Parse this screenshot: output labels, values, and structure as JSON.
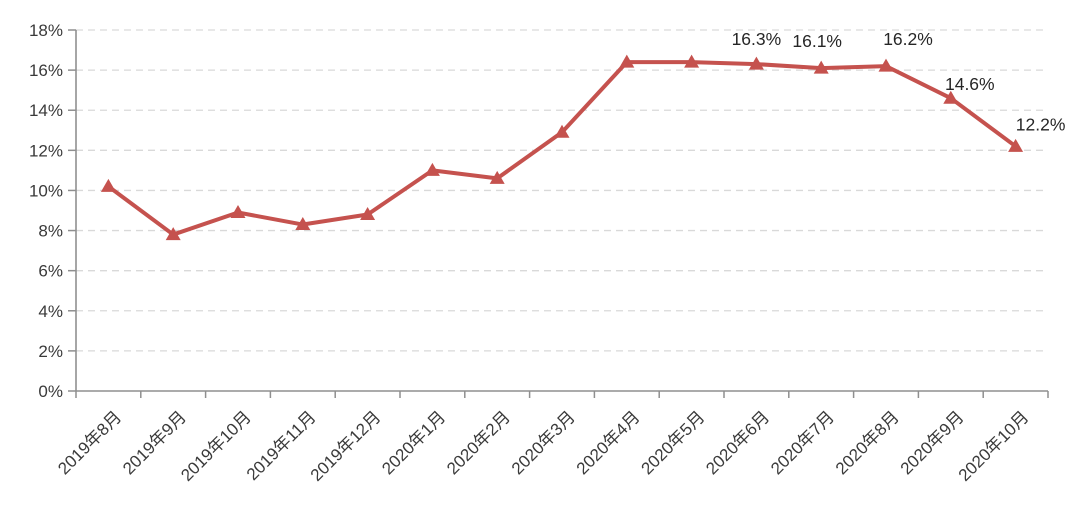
{
  "chart_data": {
    "type": "line",
    "title": "",
    "categories": [
      "2019年8月",
      "2019年9月",
      "2019年10月",
      "2019年11月",
      "2019年12月",
      "2020年1月",
      "2020年2月",
      "2020年3月",
      "2020年4月",
      "2020年5月",
      "2020年6月",
      "2020年7月",
      "2020年8月",
      "2020年9月",
      "2020年10月"
    ],
    "series": [
      {
        "values": [
          10.2,
          7.8,
          8.9,
          8.3,
          8.8,
          11.0,
          10.6,
          12.9,
          16.4,
          16.4,
          16.3,
          16.1,
          16.2,
          14.6,
          12.2
        ],
        "data_labels": [
          "",
          "",
          "",
          "",
          "",
          "",
          "",
          "",
          "",
          "",
          "16.3%",
          "16.1%",
          "16.2%",
          "14.6%",
          "12.2%"
        ],
        "color": "#C5524E",
        "marker": "triangle-up"
      }
    ],
    "xlabel": "",
    "ylabel": "",
    "ylim": [
      0,
      18
    ],
    "ytick_step": 2,
    "ytick_labels": [
      "0%",
      "2%",
      "4%",
      "6%",
      "8%",
      "10%",
      "12%",
      "14%",
      "16%",
      "18%"
    ],
    "grid": {
      "horizontal": true,
      "style": "dashed",
      "color": "#D9D9D9"
    },
    "legend": "none",
    "axis_color": "#8F8F8F",
    "tick_label_color": "#3A3A3A",
    "data_label_color": "#262626",
    "background": "#FFFFFF",
    "x_tick_label_rotation_deg": -45
  }
}
